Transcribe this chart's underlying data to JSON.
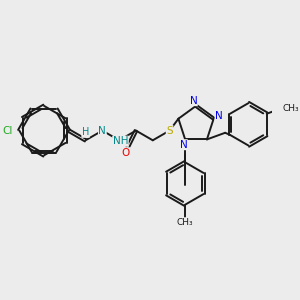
{
  "bg_color": "#ececec",
  "bond_color": "#1a1a1a",
  "bond_lw": 1.4,
  "dbo": 0.018,
  "figsize": [
    3.0,
    3.0
  ],
  "dpi": 100,
  "colors": {
    "Cl": "#22aa22",
    "N": "#0000ee",
    "O": "#ee0000",
    "S": "#bbaa00",
    "H": "#008888",
    "C": "#1a1a1a"
  },
  "xlim": [
    0.0,
    3.0
  ],
  "ylim": [
    0.0,
    3.0
  ]
}
